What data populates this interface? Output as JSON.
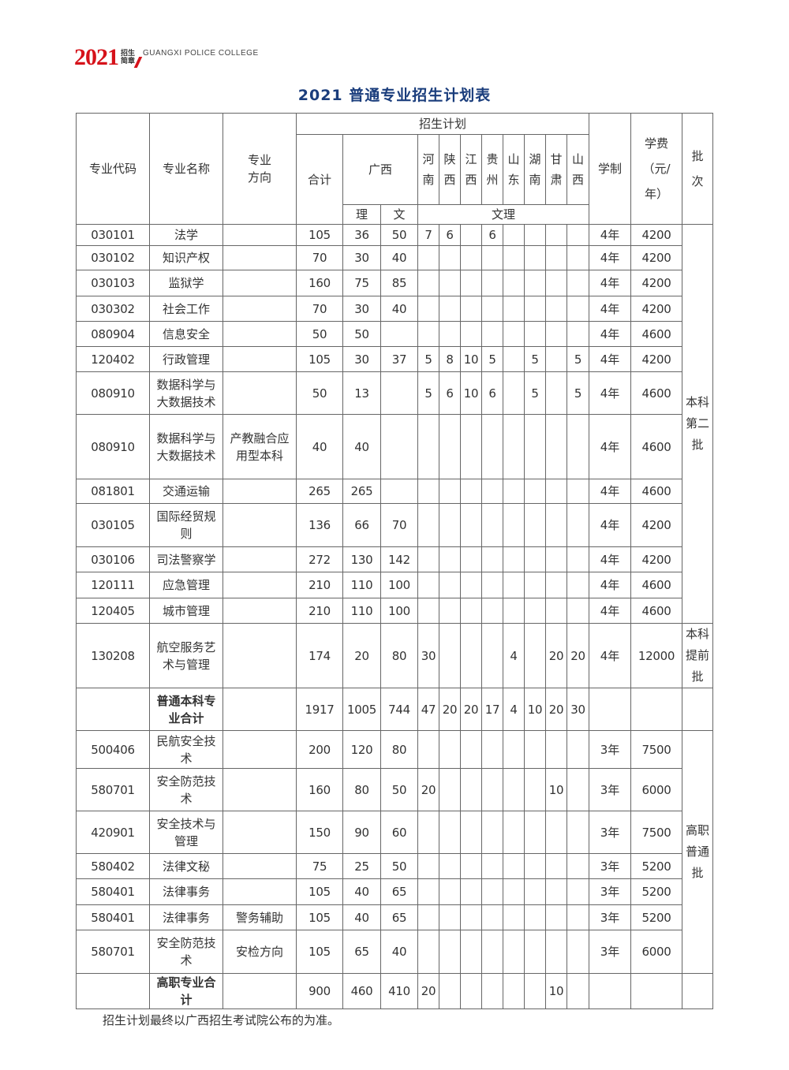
{
  "brand": {
    "year": "2021",
    "sub_top": "招生",
    "sub_bottom": "简章",
    "college": "GUANGXI POLICE COLLEGE",
    "color": "#d6121a"
  },
  "title": "2021 普通专业招生计划表",
  "header": {
    "code": "专业代码",
    "name": "专业名称",
    "direction": "专业方向",
    "plan": "招生计划",
    "total": "合计",
    "guangxi": "广西",
    "li": "理",
    "wen": "文",
    "wenli": "文理",
    "provinces": [
      "河南",
      "陕西",
      "江西",
      "贵州",
      "山东",
      "湖南",
      "甘肃",
      "山西"
    ],
    "duration": "学制",
    "fee": "学费（元/年）",
    "batch": "批次"
  },
  "rows": [
    {
      "code": "030101",
      "name": "法学",
      "dir": "",
      "total": "105",
      "li": "36",
      "wen": "50",
      "prov": [
        "7",
        "6",
        "",
        "6",
        "",
        "",
        "",
        ""
      ],
      "dur": "4年",
      "fee": "4200"
    },
    {
      "code": "030102",
      "name": "知识产权",
      "dir": "",
      "total": "70",
      "li": "30",
      "wen": "40",
      "prov": [
        "",
        "",
        "",
        "",
        "",
        "",
        "",
        ""
      ],
      "dur": "4年",
      "fee": "4200"
    },
    {
      "code": "030103",
      "name": "监狱学",
      "dir": "",
      "total": "160",
      "li": "75",
      "wen": "85",
      "prov": [
        "",
        "",
        "",
        "",
        "",
        "",
        "",
        ""
      ],
      "dur": "4年",
      "fee": "4200"
    },
    {
      "code": "030302",
      "name": "社会工作",
      "dir": "",
      "total": "70",
      "li": "30",
      "wen": "40",
      "prov": [
        "",
        "",
        "",
        "",
        "",
        "",
        "",
        ""
      ],
      "dur": "4年",
      "fee": "4200"
    },
    {
      "code": "080904",
      "name": "信息安全",
      "dir": "",
      "total": "50",
      "li": "50",
      "wen": "",
      "prov": [
        "",
        "",
        "",
        "",
        "",
        "",
        "",
        ""
      ],
      "dur": "4年",
      "fee": "4600"
    },
    {
      "code": "120402",
      "name": "行政管理",
      "dir": "",
      "total": "105",
      "li": "30",
      "wen": "37",
      "prov": [
        "5",
        "8",
        "10",
        "5",
        "",
        "5",
        "",
        "5"
      ],
      "dur": "4年",
      "fee": "4200"
    },
    {
      "code": "080910",
      "name": "数据科学与大数据技术",
      "dir": "",
      "total": "50",
      "li": "13",
      "wen": "",
      "prov": [
        "5",
        "6",
        "10",
        "6",
        "",
        "5",
        "",
        "5"
      ],
      "dur": "4年",
      "fee": "4600"
    },
    {
      "code": "080910",
      "name": "数据科学与大数据技术",
      "dir": "产教融合应用型本科",
      "total": "40",
      "li": "40",
      "wen": "",
      "prov": [
        "",
        "",
        "",
        "",
        "",
        "",
        "",
        ""
      ],
      "dur": "4年",
      "fee": "4600"
    },
    {
      "code": "081801",
      "name": "交通运输",
      "dir": "",
      "total": "265",
      "li": "265",
      "wen": "",
      "prov": [
        "",
        "",
        "",
        "",
        "",
        "",
        "",
        ""
      ],
      "dur": "4年",
      "fee": "4600"
    },
    {
      "code": "030105",
      "name": "国际经贸规则",
      "dir": "",
      "total": "136",
      "li": "66",
      "wen": "70",
      "prov": [
        "",
        "",
        "",
        "",
        "",
        "",
        "",
        ""
      ],
      "dur": "4年",
      "fee": "4200"
    },
    {
      "code": "030106",
      "name": "司法警察学",
      "dir": "",
      "total": "272",
      "li": "130",
      "wen": "142",
      "prov": [
        "",
        "",
        "",
        "",
        "",
        "",
        "",
        ""
      ],
      "dur": "4年",
      "fee": "4200"
    },
    {
      "code": "120111",
      "name": "应急管理",
      "dir": "",
      "total": "210",
      "li": "110",
      "wen": "100",
      "prov": [
        "",
        "",
        "",
        "",
        "",
        "",
        "",
        ""
      ],
      "dur": "4年",
      "fee": "4600"
    },
    {
      "code": "120405",
      "name": "城市管理",
      "dir": "",
      "total": "210",
      "li": "110",
      "wen": "100",
      "prov": [
        "",
        "",
        "",
        "",
        "",
        "",
        "",
        ""
      ],
      "dur": "4年",
      "fee": "4600"
    },
    {
      "code": "130208",
      "name": "航空服务艺术与管理",
      "dir": "",
      "total": "174",
      "li": "20",
      "wen": "80",
      "prov": [
        "30",
        "",
        "",
        "",
        "4",
        "",
        "20",
        "20"
      ],
      "dur": "4年",
      "fee": "12000"
    },
    {
      "code": "",
      "name": "普通本科专业合计",
      "dir": "",
      "total": "1917",
      "li": "1005",
      "wen": "744",
      "prov": [
        "47",
        "20",
        "20",
        "17",
        "4",
        "10",
        "20",
        "30"
      ],
      "dur": "",
      "fee": "",
      "bold": true
    },
    {
      "code": "500406",
      "name": "民航安全技术",
      "dir": "",
      "total": "200",
      "li": "120",
      "wen": "80",
      "prov": [
        "",
        "",
        "",
        "",
        "",
        "",
        "",
        ""
      ],
      "dur": "3年",
      "fee": "7500"
    },
    {
      "code": "580701",
      "name": "安全防范技术",
      "dir": "",
      "total": "160",
      "li": "80",
      "wen": "50",
      "prov": [
        "20",
        "",
        "",
        "",
        "",
        "",
        "10",
        ""
      ],
      "dur": "3年",
      "fee": "6000"
    },
    {
      "code": "420901",
      "name": "安全技术与管理",
      "dir": "",
      "total": "150",
      "li": "90",
      "wen": "60",
      "prov": [
        "",
        "",
        "",
        "",
        "",
        "",
        "",
        ""
      ],
      "dur": "3年",
      "fee": "7500"
    },
    {
      "code": "580402",
      "name": "法律文秘",
      "dir": "",
      "total": "75",
      "li": "25",
      "wen": "50",
      "prov": [
        "",
        "",
        "",
        "",
        "",
        "",
        "",
        ""
      ],
      "dur": "3年",
      "fee": "5200"
    },
    {
      "code": "580401",
      "name": "法律事务",
      "dir": "",
      "total": "105",
      "li": "40",
      "wen": "65",
      "prov": [
        "",
        "",
        "",
        "",
        "",
        "",
        "",
        ""
      ],
      "dur": "3年",
      "fee": "5200"
    },
    {
      "code": "580401",
      "name": "法律事务",
      "dir": "警务辅助",
      "total": "105",
      "li": "40",
      "wen": "65",
      "prov": [
        "",
        "",
        "",
        "",
        "",
        "",
        "",
        ""
      ],
      "dur": "3年",
      "fee": "5200"
    },
    {
      "code": "580701",
      "name": "安全防范技术",
      "dir": "安检方向",
      "total": "105",
      "li": "65",
      "wen": "40",
      "prov": [
        "",
        "",
        "",
        "",
        "",
        "",
        "",
        ""
      ],
      "dur": "3年",
      "fee": "6000"
    },
    {
      "code": "",
      "name": "高职专业合计",
      "dir": "",
      "total": "900",
      "li": "460",
      "wen": "410",
      "prov": [
        "20",
        "",
        "",
        "",
        "",
        "",
        "10",
        ""
      ],
      "dur": "",
      "fee": "",
      "bold": true
    }
  ],
  "batches": [
    {
      "label": "本科第二批",
      "start": 0,
      "span": 13
    },
    {
      "label": "本科提前批",
      "start": 13,
      "span": 1
    },
    {
      "label": "",
      "start": 14,
      "span": 1
    },
    {
      "label": "高职普通批",
      "start": 15,
      "span": 7
    },
    {
      "label": "",
      "start": 22,
      "span": 1
    }
  ],
  "note": "招生计划最终以广西招生考试院公布的为准。"
}
